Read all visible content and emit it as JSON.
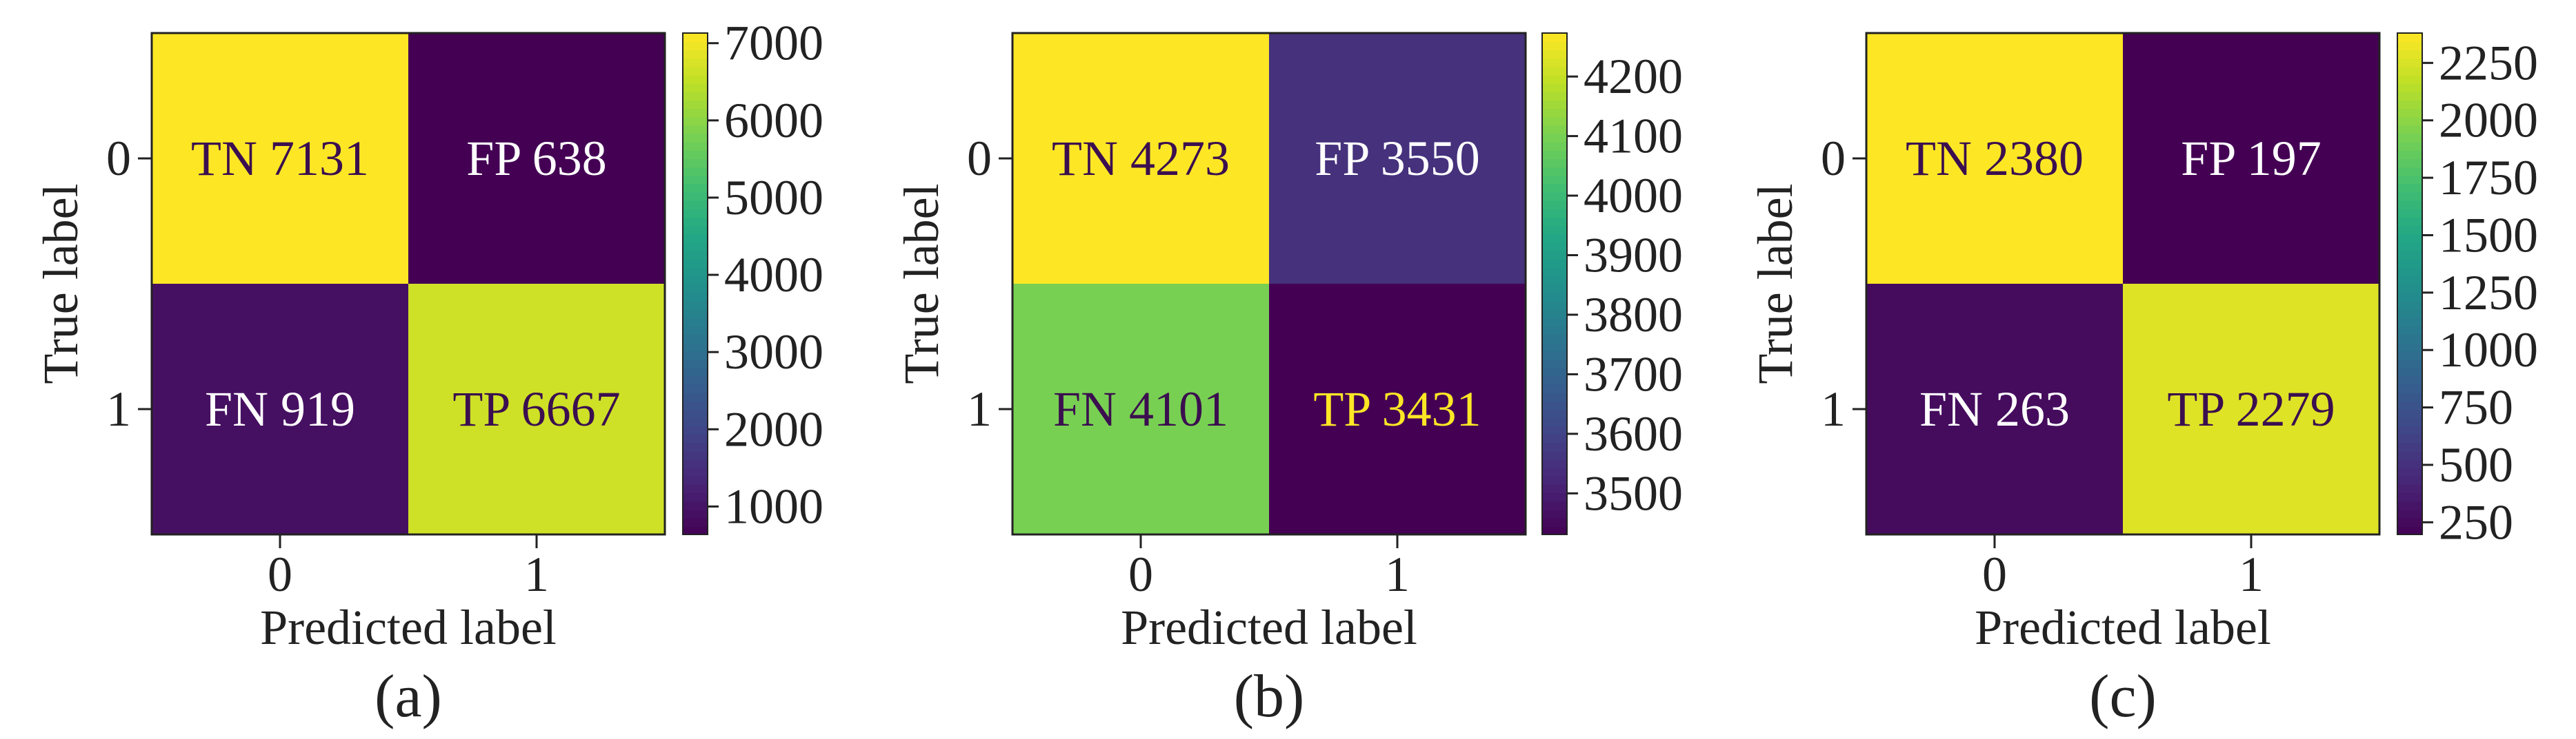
{
  "chart_data": [
    {
      "type": "heatmap",
      "panel_label": "(a)",
      "xlabel": "Predicted label",
      "ylabel": "True label",
      "x_ticks": [
        "0",
        "1"
      ],
      "y_ticks": [
        "0",
        "1"
      ],
      "cells": [
        [
          {
            "label": "TN",
            "value": 7131
          },
          {
            "label": "FP",
            "value": 638
          }
        ],
        [
          {
            "label": "FN",
            "value": 919
          },
          {
            "label": "TP",
            "value": 6667
          }
        ]
      ],
      "colorbar": {
        "ticks": [
          1000,
          2000,
          3000,
          4000,
          5000,
          6000,
          7000
        ],
        "range": [
          638,
          7131
        ]
      }
    },
    {
      "type": "heatmap",
      "panel_label": "(b)",
      "xlabel": "Predicted label",
      "ylabel": "True label",
      "x_ticks": [
        "0",
        "1"
      ],
      "y_ticks": [
        "0",
        "1"
      ],
      "cells": [
        [
          {
            "label": "TN",
            "value": 4273
          },
          {
            "label": "FP",
            "value": 3550
          }
        ],
        [
          {
            "label": "FN",
            "value": 4101
          },
          {
            "label": "TP",
            "value": 3431
          }
        ]
      ],
      "colorbar": {
        "ticks": [
          3500,
          3600,
          3700,
          3800,
          3900,
          4000,
          4100,
          4200
        ],
        "range": [
          3431,
          4273
        ]
      }
    },
    {
      "type": "heatmap",
      "panel_label": "(c)",
      "xlabel": "Predicted label",
      "ylabel": "True label",
      "x_ticks": [
        "0",
        "1"
      ],
      "y_ticks": [
        "0",
        "1"
      ],
      "cells": [
        [
          {
            "label": "TN",
            "value": 2380
          },
          {
            "label": "FP",
            "value": 197
          }
        ],
        [
          {
            "label": "FN",
            "value": 263
          },
          {
            "label": "TP",
            "value": 2279
          }
        ]
      ],
      "colorbar": {
        "ticks": [
          250,
          500,
          750,
          1000,
          1250,
          1500,
          1750,
          2000,
          2250
        ],
        "range": [
          197,
          2380
        ]
      }
    }
  ],
  "colors": {
    "colormap": "viridis",
    "text_on_dark": "#ffffff",
    "text_on_bright": "#3b0f4f",
    "panel_b_tp_text": "#fde725"
  }
}
